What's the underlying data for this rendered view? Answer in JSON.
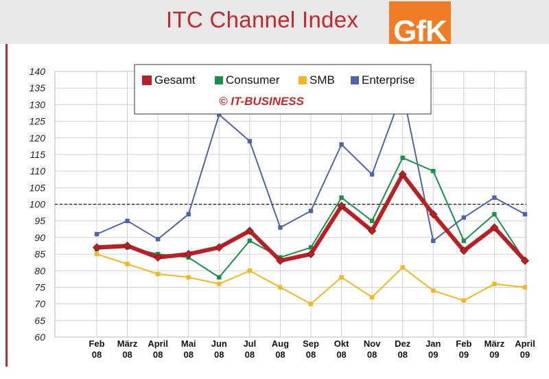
{
  "page": {
    "title": "ITC Channel Index",
    "logo_text": "GfK"
  },
  "colors": {
    "title": "#c4282b",
    "logo_bg": "#f07d26",
    "header_bg": "#e9e9e9",
    "reference_line": "#000000"
  },
  "chart_data": {
    "type": "line",
    "title": "ITC Channel Index",
    "xlabel": "",
    "ylabel": "",
    "ylim": [
      60,
      140
    ],
    "yticks": [
      60,
      65,
      70,
      75,
      80,
      85,
      90,
      95,
      100,
      105,
      110,
      115,
      120,
      125,
      130,
      135,
      140
    ],
    "grid": true,
    "reference_line": 100,
    "legend_position": "top-center",
    "legend_note": "© IT-BUSINESS",
    "categories": [
      [
        "Feb",
        "08"
      ],
      [
        "März",
        "08"
      ],
      [
        "April",
        "08"
      ],
      [
        "Mai",
        "08"
      ],
      [
        "Jun",
        "08"
      ],
      [
        "Jul",
        "08"
      ],
      [
        "Aug",
        "08"
      ],
      [
        "Sep",
        "08"
      ],
      [
        "Okt",
        "08"
      ],
      [
        "Nov",
        "08"
      ],
      [
        "Dez",
        "08"
      ],
      [
        "Jan",
        "09"
      ],
      [
        "Feb",
        "09"
      ],
      [
        "März",
        "09"
      ],
      [
        "April",
        "09"
      ]
    ],
    "series": [
      {
        "name": "Enterprise",
        "color": "#4f63ad",
        "width": 2,
        "marker": "square",
        "values": [
          91,
          95,
          89.5,
          97,
          127,
          119,
          93,
          98,
          118,
          109,
          134,
          89,
          96,
          102,
          97
        ]
      },
      {
        "name": "SMB",
        "color": "#f5b61e",
        "width": 2,
        "marker": "square",
        "values": [
          85,
          82,
          79,
          78,
          76,
          80,
          75,
          70,
          78,
          72,
          81,
          74,
          71,
          76,
          75
        ]
      },
      {
        "name": "Consumer",
        "color": "#17904a",
        "width": 2,
        "marker": "square",
        "values": [
          86.5,
          87,
          85,
          84,
          78,
          89,
          84,
          87,
          102,
          95,
          114,
          110,
          89,
          97,
          83
        ]
      },
      {
        "name": "Gesamt",
        "color": "#b82024",
        "width": 6,
        "marker": "diamond",
        "values": [
          87,
          87.5,
          84,
          85,
          87,
          92,
          83,
          85,
          99.5,
          92,
          109,
          97,
          86,
          93,
          83
        ]
      }
    ],
    "legend_order": [
      "Gesamt",
      "Consumer",
      "SMB",
      "Enterprise"
    ]
  }
}
